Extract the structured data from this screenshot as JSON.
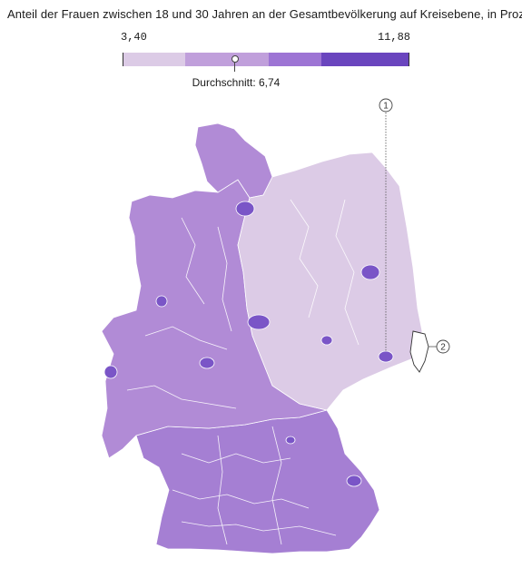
{
  "title": "Anteil der Frauen zwischen 18 und 30 Jahren an der Gesamtbevölkerung auf Kreisebene, in Prozent",
  "legend": {
    "min_label": "3,40",
    "max_label": "11,88",
    "average_label": "Durchschnitt: 6,74",
    "min": 3.4,
    "max": 11.88,
    "average": 6.74,
    "class_colors": [
      "#dccbe6",
      "#c09fdb",
      "#9d74d4",
      "#6a45be"
    ]
  },
  "markers": [
    {
      "label": "1"
    },
    {
      "label": "2"
    }
  ],
  "colors": {
    "east_region": "#dccbe6",
    "west_north": "#b18bd6",
    "west_south": "#a57fd3",
    "dark_district": "#7a55c7",
    "border": "#ffffff"
  }
}
